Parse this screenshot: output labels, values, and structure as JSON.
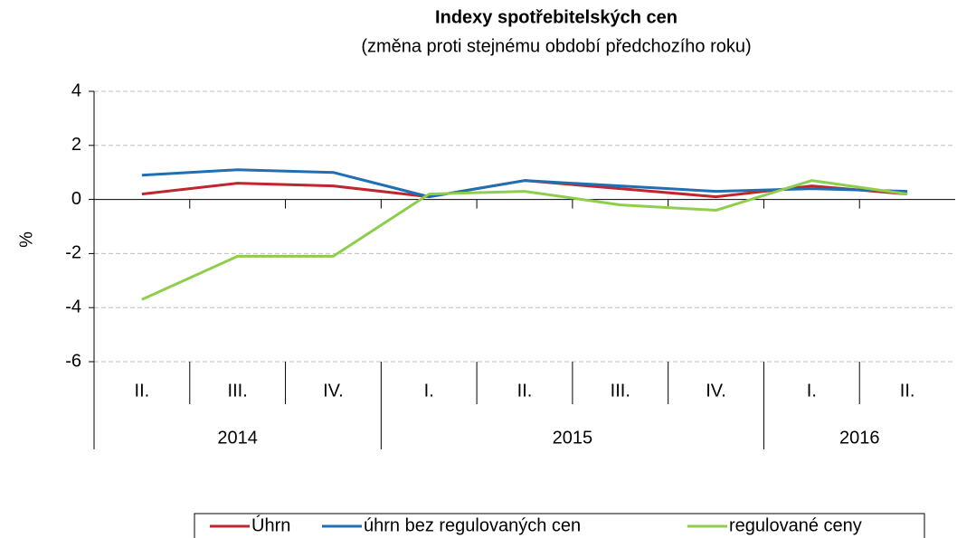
{
  "chart_data": {
    "type": "line",
    "title": "Indexy spotřebitelských cen",
    "subtitle": "(změna proti stejnému období předchozího roku)",
    "y_label": "%",
    "categories": [
      "II.",
      "III.",
      "IV.",
      "I.",
      "II.",
      "III.",
      "IV.",
      "I.",
      "II."
    ],
    "years": [
      "2014",
      "2014",
      "2014",
      "2015",
      "2015",
      "2015",
      "2015",
      "2016",
      "2016"
    ],
    "series": [
      {
        "name": "Úhrn",
        "color": "#c0262d",
        "values": [
          0.2,
          0.6,
          0.5,
          0.1,
          0.7,
          0.4,
          0.1,
          0.5,
          0.2
        ]
      },
      {
        "name": "úhrn bez regulovaných cen",
        "color": "#1f6fb4",
        "values": [
          0.9,
          1.1,
          1.0,
          0.1,
          0.7,
          0.5,
          0.3,
          0.4,
          0.3
        ]
      },
      {
        "name": "regulované ceny",
        "color": "#8fce4c",
        "values": [
          -3.7,
          -2.1,
          -2.1,
          0.2,
          0.3,
          -0.2,
          -0.4,
          0.7,
          0.2
        ]
      }
    ],
    "ylim": [
      -6,
      4
    ],
    "yticks": [
      -6,
      -4,
      -2,
      0,
      2,
      4
    ],
    "grid": true,
    "legend": "bottom"
  }
}
